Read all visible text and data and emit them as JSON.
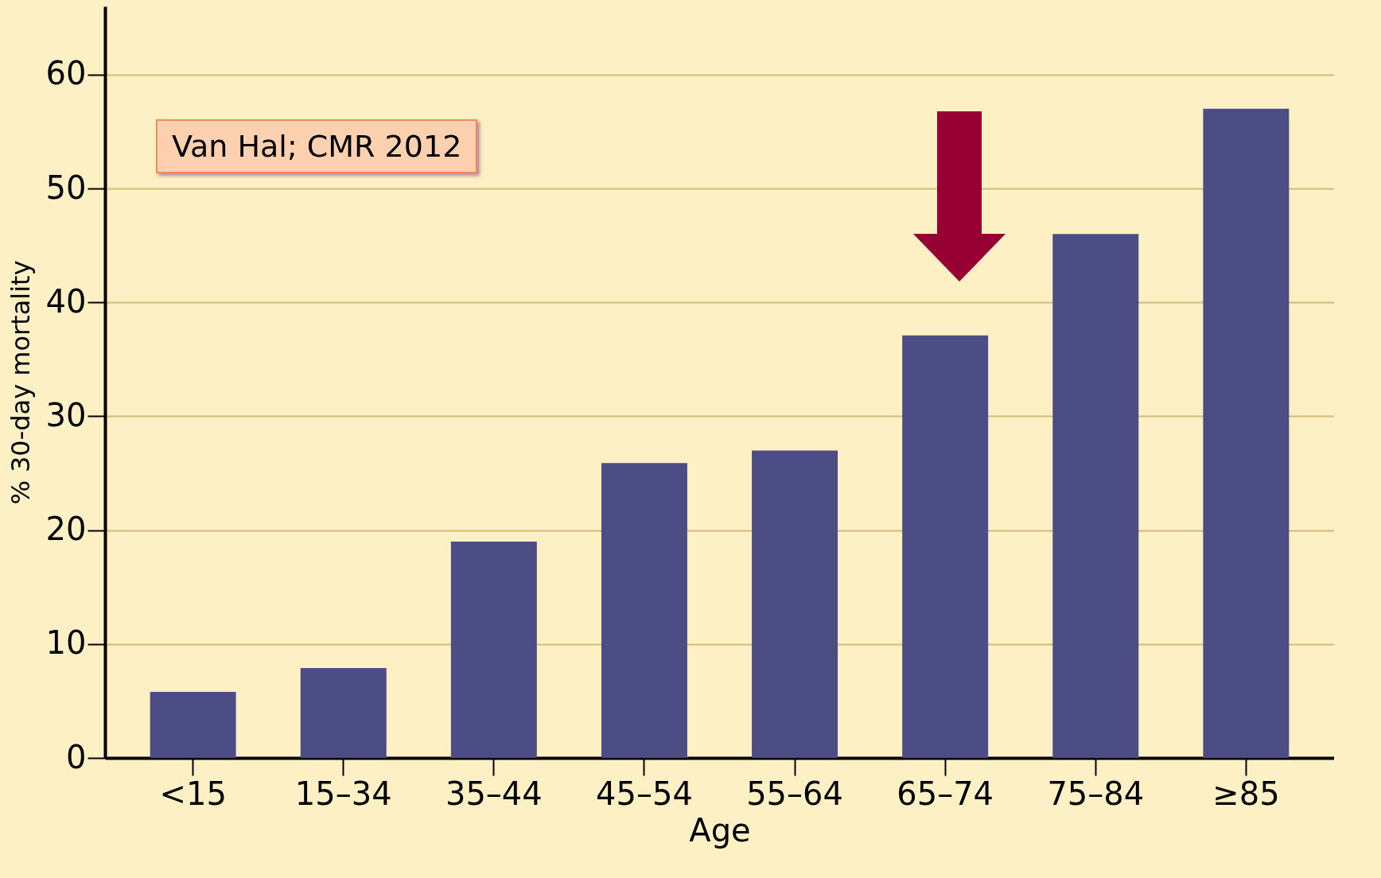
{
  "chart_data": {
    "type": "bar",
    "xlabel": "Age",
    "ylabel": "% 30-day mortality",
    "categories": [
      "<15",
      "15–34",
      "35–44",
      "45–54",
      "55–64",
      "65–74",
      "75–84",
      "≥85"
    ],
    "values": [
      5.8,
      7.9,
      19,
      25.9,
      27,
      37.1,
      46,
      57
    ],
    "color": "#4d4d85",
    "ylim": [
      0,
      66
    ],
    "yticks": [
      0,
      10,
      20,
      30,
      40,
      50,
      60
    ],
    "grid": "y",
    "annotations": [
      "Van Hal; CMR 2012"
    ]
  }
}
